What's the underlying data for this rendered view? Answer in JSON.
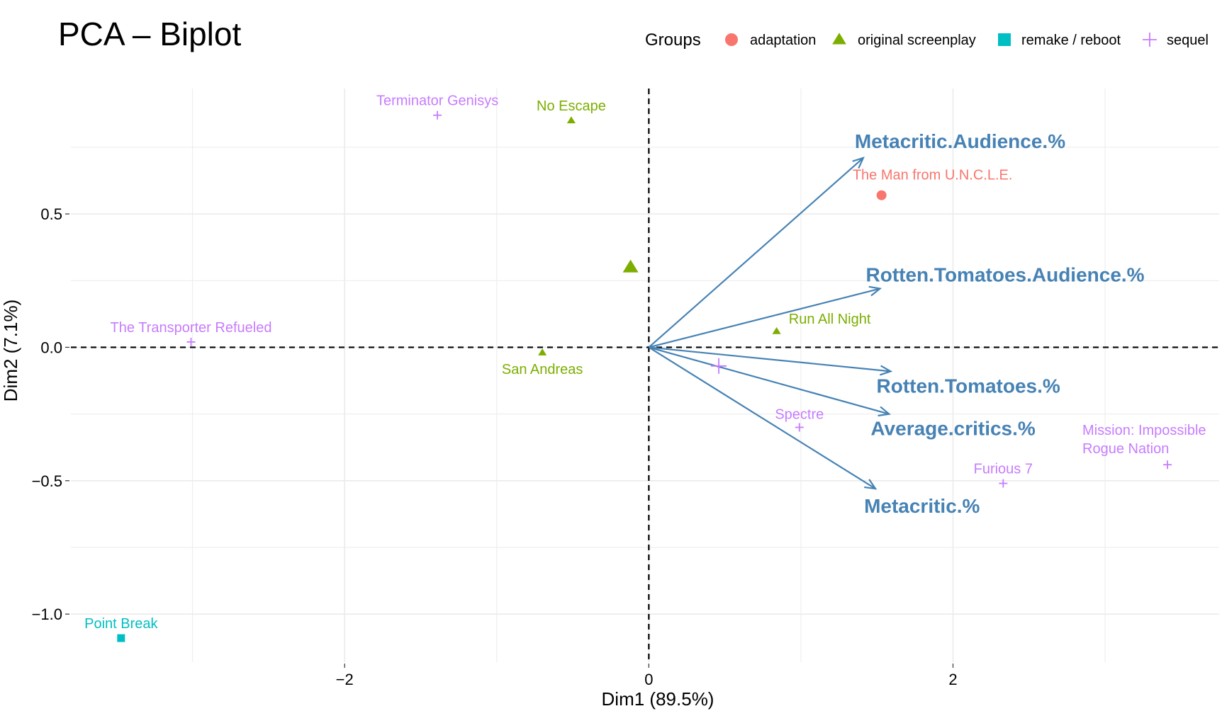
{
  "colors": {
    "adaptation": "#F8766D",
    "original_screenplay": "#7CAE00",
    "remake_reboot": "#00BFC4",
    "sequel": "#C77CFF",
    "variable_arrow": "#4682B4",
    "grid": "#EBEBEB"
  },
  "chart_data": {
    "type": "scatter",
    "title": "PCA – Biplot",
    "xlabel": "Dim1 (89.5%)",
    "ylabel": "Dim2 (7.1%)",
    "xlim": [
      -3.8,
      3.75
    ],
    "ylim": [
      -1.18,
      0.97
    ],
    "x_ticks": [
      {
        "value": -2,
        "label": "−2"
      },
      {
        "value": 0,
        "label": "0"
      },
      {
        "value": 2,
        "label": "2"
      }
    ],
    "y_ticks": [
      {
        "value": -1.0,
        "label": "−1.0"
      },
      {
        "value": -0.5,
        "label": "−0.5"
      },
      {
        "value": 0.0,
        "label": "0.0"
      },
      {
        "value": 0.5,
        "label": "0.5"
      }
    ],
    "grid": true,
    "reference_lines": {
      "x": 0,
      "y": 0,
      "style": "dashed"
    },
    "legend": {
      "title": "Groups",
      "position": "top-right",
      "entries": [
        {
          "key": "adaptation",
          "label": "adaptation",
          "shape": "circle"
        },
        {
          "key": "original_screenplay",
          "label": "original screenplay",
          "shape": "triangle"
        },
        {
          "key": "remake_reboot",
          "label": "remake / reboot",
          "shape": "square"
        },
        {
          "key": "sequel",
          "label": "sequel",
          "shape": "plus"
        }
      ]
    },
    "points": [
      {
        "label": "Terminator Genisys",
        "x": -1.39,
        "y": 0.87,
        "group": "sequel"
      },
      {
        "label": "No Escape",
        "x": -0.51,
        "y": 0.85,
        "group": "original_screenplay"
      },
      {
        "label": "The Man from U.N.C.L.E.",
        "x": 1.53,
        "y": 0.57,
        "group": "adaptation"
      },
      {
        "label": "The Transporter Refueled",
        "x": -3.01,
        "y": 0.02,
        "group": "sequel"
      },
      {
        "label": "San Andreas",
        "x": -0.7,
        "y": -0.02,
        "group": "original_screenplay"
      },
      {
        "label": "Run All Night",
        "x": 0.84,
        "y": 0.06,
        "group": "original_screenplay"
      },
      {
        "label": "Spectre",
        "x": 0.99,
        "y": -0.3,
        "group": "sequel"
      },
      {
        "label": "Furious 7",
        "x": 2.33,
        "y": -0.51,
        "group": "sequel"
      },
      {
        "label": "Mission: Impossible\nRogue Nation",
        "x": 3.41,
        "y": -0.44,
        "group": "sequel"
      },
      {
        "label": "Point Break",
        "x": -3.47,
        "y": -1.09,
        "group": "remake_reboot"
      }
    ],
    "group_centroids": [
      {
        "group": "original_screenplay",
        "x": -0.12,
        "y": 0.3
      },
      {
        "group": "sequel",
        "x": 0.46,
        "y": -0.07
      }
    ],
    "variables": [
      {
        "label": "Metacritic.Audience.%",
        "x": 1.41,
        "y": 0.71
      },
      {
        "label": "Rotten.Tomatoes.Audience.%",
        "x": 1.52,
        "y": 0.22
      },
      {
        "label": "Rotten.Tomatoes.%",
        "x": 1.59,
        "y": -0.09
      },
      {
        "label": "Average.critics.%",
        "x": 1.58,
        "y": -0.25
      },
      {
        "label": "Metacritic.%",
        "x": 1.49,
        "y": -0.53
      }
    ]
  }
}
